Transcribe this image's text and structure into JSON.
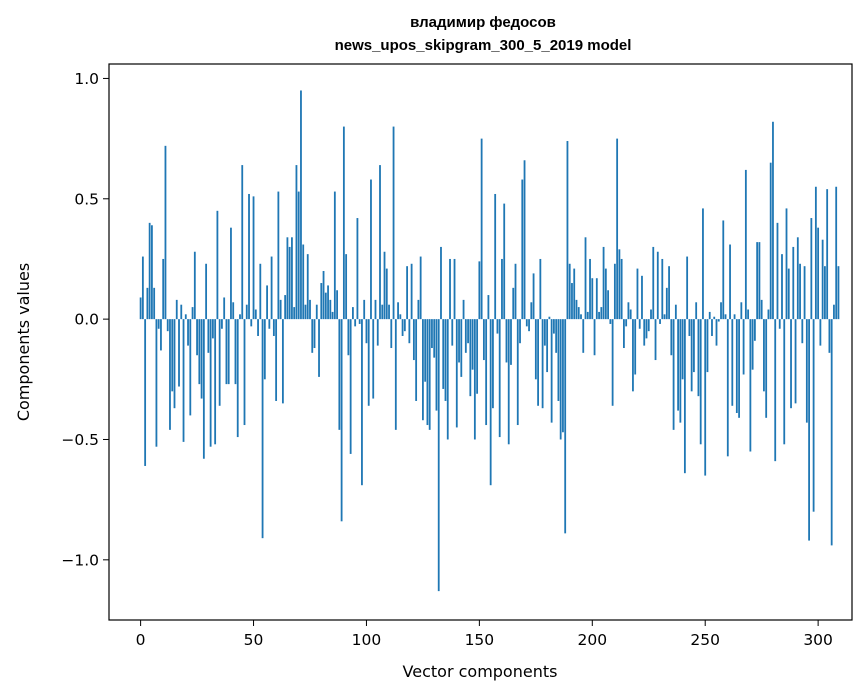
{
  "chart_data": {
    "type": "bar",
    "title_line1": "владимир федосов",
    "title_line2": "news_upos_skipgram_300_5_2019 model",
    "xlabel": "Vector components",
    "ylabel": "Components values",
    "xlim": [
      -14,
      315
    ],
    "ylim": [
      -1.25,
      1.06
    ],
    "x_ticks": [
      0,
      50,
      100,
      150,
      200,
      250,
      300
    ],
    "x_tick_labels": [
      "0",
      "50",
      "100",
      "150",
      "200",
      "250",
      "300"
    ],
    "y_ticks": [
      1.0,
      0.5,
      0.0,
      -0.5,
      -1.0
    ],
    "y_tick_labels": [
      "1.0",
      "0.5",
      "0.0",
      "−0.5",
      "−1.0"
    ],
    "grid": false,
    "bar_color": "#1f77b4",
    "values": [
      0.09,
      0.26,
      -0.61,
      0.13,
      0.4,
      0.39,
      0.13,
      -0.53,
      -0.04,
      -0.13,
      0.25,
      0.72,
      -0.05,
      -0.46,
      -0.3,
      -0.37,
      0.08,
      -0.28,
      0.06,
      -0.51,
      0.02,
      -0.11,
      -0.4,
      0.05,
      0.28,
      -0.15,
      -0.27,
      -0.33,
      -0.58,
      0.23,
      -0.14,
      -0.53,
      -0.08,
      -0.52,
      0.45,
      -0.36,
      -0.04,
      0.09,
      -0.27,
      -0.27,
      0.38,
      0.07,
      -0.27,
      -0.49,
      0.02,
      0.64,
      -0.44,
      0.06,
      0.52,
      -0.03,
      0.51,
      0.04,
      -0.07,
      0.23,
      -0.91,
      -0.25,
      0.14,
      -0.04,
      0.26,
      -0.07,
      -0.34,
      0.53,
      0.08,
      -0.35,
      0.1,
      0.34,
      0.3,
      0.34,
      0.05,
      0.64,
      0.53,
      0.95,
      0.31,
      0.06,
      0.27,
      0.08,
      -0.14,
      -0.12,
      0.06,
      -0.24,
      0.15,
      0.2,
      0.11,
      0.14,
      0.08,
      0.03,
      0.53,
      0.12,
      -0.46,
      -0.84,
      0.8,
      0.27,
      -0.15,
      -0.56,
      0.05,
      -0.03,
      0.42,
      -0.02,
      -0.69,
      0.08,
      -0.1,
      -0.36,
      0.58,
      -0.33,
      0.08,
      -0.11,
      0.64,
      0.06,
      0.28,
      0.21,
      0.06,
      -0.12,
      0.8,
      -0.46,
      0.07,
      0.02,
      -0.07,
      -0.05,
      0.22,
      -0.1,
      0.23,
      -0.17,
      -0.34,
      0.08,
      0.26,
      -0.42,
      -0.26,
      -0.44,
      -0.46,
      -0.12,
      -0.16,
      -0.38,
      -1.13,
      0.3,
      -0.29,
      -0.34,
      -0.5,
      0.25,
      -0.11,
      0.25,
      -0.45,
      -0.18,
      -0.24,
      0.08,
      -0.14,
      -0.1,
      -0.32,
      -0.21,
      -0.5,
      -0.31,
      0.24,
      0.75,
      -0.17,
      -0.44,
      0.1,
      -0.69,
      -0.37,
      0.52,
      -0.06,
      -0.49,
      0.25,
      0.48,
      -0.18,
      -0.52,
      -0.19,
      0.13,
      0.23,
      -0.44,
      -0.1,
      0.58,
      0.66,
      -0.03,
      -0.05,
      0.07,
      0.19,
      -0.25,
      -0.36,
      0.25,
      -0.37,
      -0.11,
      -0.22,
      0.01,
      -0.43,
      -0.06,
      -0.14,
      -0.34,
      -0.5,
      -0.47,
      -0.89,
      0.74,
      0.23,
      0.15,
      0.21,
      0.08,
      0.05,
      0.02,
      -0.14,
      0.34,
      0.03,
      0.25,
      0.17,
      -0.15,
      0.17,
      0.03,
      0.05,
      0.3,
      0.21,
      0.12,
      -0.02,
      -0.36,
      0.23,
      0.75,
      0.29,
      0.25,
      -0.12,
      -0.03,
      0.07,
      0.04,
      -0.3,
      -0.23,
      0.21,
      -0.04,
      0.18,
      -0.11,
      -0.08,
      -0.05,
      0.04,
      0.3,
      -0.17,
      0.28,
      -0.02,
      0.25,
      0.02,
      0.13,
      0.22,
      -0.15,
      -0.46,
      0.06,
      -0.38,
      -0.43,
      -0.25,
      -0.64,
      0.26,
      -0.07,
      -0.3,
      -0.22,
      0.07,
      -0.32,
      -0.52,
      0.46,
      -0.65,
      -0.22,
      0.03,
      -0.07,
      0.01,
      -0.11,
      -0.01,
      0.07,
      0.41,
      0.02,
      -0.57,
      0.31,
      -0.36,
      0.02,
      -0.39,
      -0.41,
      0.07,
      -0.23,
      0.62,
      0.04,
      -0.55,
      -0.21,
      -0.09,
      0.32,
      0.32,
      0.08,
      -0.3,
      -0.41,
      0.04,
      0.65,
      0.82,
      -0.59,
      0.4,
      -0.04,
      0.27,
      -0.52,
      0.46,
      0.21,
      -0.37,
      0.3,
      -0.35,
      0.34,
      0.23,
      -0.1,
      0.22,
      -0.43,
      -0.92,
      0.42,
      -0.8,
      0.55,
      0.38,
      -0.11,
      0.33,
      0.22,
      0.54,
      -0.14,
      -0.94,
      0.06,
      0.55,
      0.22
    ]
  }
}
